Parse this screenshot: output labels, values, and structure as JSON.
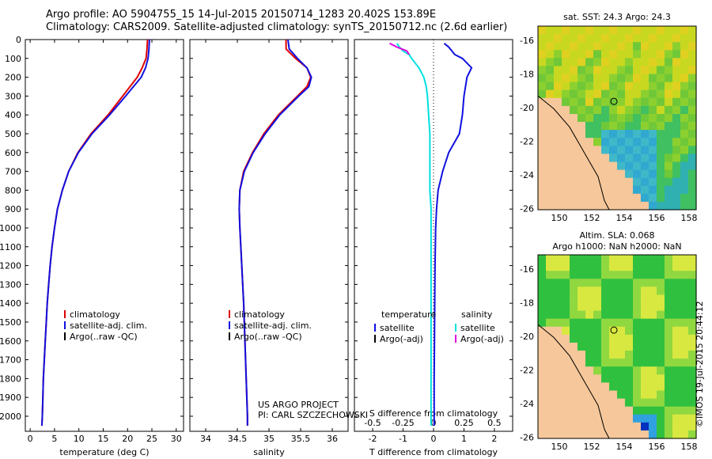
{
  "header": {
    "line1": "Argo profile: AO 5904755_15 14-Jul-2015 20150714_1283 20.402S 153.89E",
    "line2": "Climatology: CARS2009. Satellite-adjusted climatology: synTS_20150712.nc (2.6d earlier)"
  },
  "colors": {
    "climatology": "#e00000",
    "satellite": "#1010e0",
    "argo": "#000000",
    "sal_satellite": "#00e0e0",
    "sal_argo": "#e000e0"
  },
  "chart_data": [
    {
      "type": "line",
      "xlabel": "temperature (deg C)",
      "ylabel": "",
      "xlim": [
        -1,
        31.5
      ],
      "ylim": [
        2080,
        0
      ],
      "xticks": [
        "0",
        "5",
        "10",
        "15",
        "20",
        "25",
        "30"
      ],
      "yticks": [
        "0",
        "100",
        "200",
        "300",
        "400",
        "500",
        "600",
        "700",
        "800",
        "900",
        "1000",
        "1100",
        "1200",
        "1300",
        "1400",
        "1500",
        "1600",
        "1700",
        "1800",
        "1900",
        "2000"
      ],
      "depth": [
        0,
        50,
        100,
        150,
        200,
        300,
        400,
        500,
        600,
        700,
        800,
        900,
        1000,
        1100,
        1200,
        1300,
        1400,
        1500,
        1600,
        1700,
        1800,
        1900,
        2000,
        2050
      ],
      "series": [
        {
          "name": "climatology",
          "values": [
            24.1,
            24.0,
            23.8,
            23.0,
            22.0,
            19.0,
            16.0,
            12.5,
            9.8,
            7.9,
            6.6,
            5.6,
            5.0,
            4.5,
            4.1,
            3.8,
            3.5,
            3.3,
            3.1,
            2.9,
            2.7,
            2.6,
            2.5,
            2.4
          ]
        },
        {
          "name": "satellite-adj. clim.",
          "values": [
            24.5,
            24.4,
            24.2,
            23.7,
            22.8,
            19.6,
            16.3,
            12.7,
            9.9,
            7.9,
            6.6,
            5.6,
            5.0,
            4.5,
            4.1,
            3.8,
            3.5,
            3.3,
            3.1,
            2.9,
            2.7,
            2.6,
            2.5,
            2.4
          ]
        }
      ],
      "legend": [
        "climatology",
        "satellite-adj. clim.",
        "Argo(..raw -QC)"
      ]
    },
    {
      "type": "line",
      "xlabel": "salinity",
      "xlim": [
        33.75,
        36.25
      ],
      "ylim": [
        2080,
        0
      ],
      "xticks": [
        "34",
        "34.5",
        "35",
        "35.5",
        "36"
      ],
      "depth": [
        0,
        50,
        100,
        150,
        200,
        250,
        300,
        400,
        500,
        600,
        700,
        800,
        900,
        1000,
        1200,
        1400,
        1600,
        1800,
        2000,
        2050
      ],
      "series": [
        {
          "name": "climatology",
          "values": [
            35.27,
            35.27,
            35.42,
            35.6,
            35.66,
            35.6,
            35.45,
            35.15,
            34.92,
            34.74,
            34.6,
            34.54,
            34.53,
            34.54,
            34.57,
            34.6,
            34.62,
            34.64,
            34.66,
            34.66
          ]
        },
        {
          "name": "satellite-adj. clim.",
          "values": [
            35.3,
            35.32,
            35.45,
            35.6,
            35.67,
            35.63,
            35.47,
            35.17,
            34.94,
            34.75,
            34.61,
            34.54,
            34.53,
            34.54,
            34.57,
            34.6,
            34.62,
            34.64,
            34.66,
            34.66
          ]
        }
      ],
      "legend": [
        "climatology",
        "satellite-adj. clim.",
        "Argo(..raw -QC)"
      ],
      "annotation": [
        "US ARGO PROJECT",
        "PI: CARL SZCZECHOWSKI"
      ]
    },
    {
      "type": "line",
      "xlabel_top": "S difference from climatology",
      "xlabel": "T difference from climatology",
      "xlim": [
        -2.6,
        2.6
      ],
      "ylim": [
        2080,
        0
      ],
      "xticks_T": [
        "-2",
        "-1",
        "0",
        "1",
        "2"
      ],
      "xticks_S": [
        "-0.5",
        "-0.25",
        "0",
        "0.25",
        "0.5"
      ],
      "depth": [
        20,
        40,
        60,
        80,
        100,
        150,
        200,
        250,
        300,
        400,
        500,
        600,
        700,
        800,
        900,
        1000,
        1200,
        1400,
        1600,
        1800,
        2000,
        2050
      ],
      "series": [
        {
          "name": "temperature satellite",
          "values": [
            0.35,
            0.5,
            0.6,
            0.7,
            0.95,
            1.25,
            1.1,
            1.05,
            1.0,
            0.95,
            0.85,
            0.5,
            0.3,
            0.15,
            0.1,
            0.07,
            0.05,
            0.04,
            0.03,
            0.02,
            0.02,
            0.02
          ]
        },
        {
          "name": "salinity satellite",
          "values": [
            -0.3,
            -0.28,
            -0.25,
            -0.2,
            -0.18,
            -0.12,
            -0.08,
            -0.06,
            -0.05,
            -0.04,
            -0.03,
            -0.03,
            -0.03,
            -0.03,
            -0.02,
            -0.02,
            -0.02,
            -0.02,
            -0.02,
            -0.02,
            -0.02,
            -0.02
          ]
        },
        {
          "name": "salinity Argo(-adj)",
          "values": [
            -0.36,
            -0.3,
            -0.22,
            -0.2
          ]
        }
      ],
      "legend_left": [
        "temperature",
        "satellite",
        "Argo(-adj)"
      ],
      "legend_right": [
        "salinity",
        "satellite",
        "Argo(-adj)"
      ]
    }
  ],
  "maps": {
    "sst_label": "sat. SST: 24.3 Argo: 24.3",
    "sla_label_1": "Altim. SLA: 0.068",
    "sla_label_2": "Argo h1000: NaN h2000: NaN",
    "yticks": [
      "-16",
      "-18",
      "-20",
      "-22",
      "-24",
      "-26"
    ],
    "xticks": [
      "150",
      "152",
      "154",
      "156",
      "158"
    ]
  },
  "stamp": "©IMOS 19-Jul-2015 20:44:12"
}
